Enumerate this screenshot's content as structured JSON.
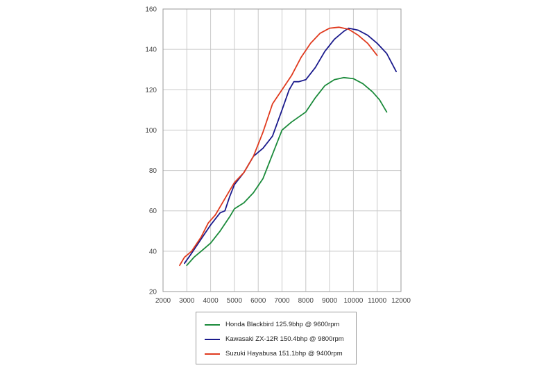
{
  "chart_data": {
    "type": "line",
    "title": "",
    "xlabel": "",
    "ylabel": "",
    "xlim": [
      2000,
      12000
    ],
    "ylim": [
      20,
      160
    ],
    "xticks": [
      2000,
      3000,
      4000,
      5000,
      6000,
      7000,
      8000,
      9000,
      10000,
      11000,
      12000
    ],
    "yticks": [
      20,
      40,
      60,
      80,
      100,
      120,
      140,
      160
    ],
    "grid": true,
    "legend_position": "bottom",
    "series": [
      {
        "name": "Honda Blackbird 125.9bhp @ 9600rpm",
        "color": "#1a8a3a",
        "points": [
          [
            3000,
            33
          ],
          [
            3300,
            37
          ],
          [
            3600,
            40
          ],
          [
            4000,
            44
          ],
          [
            4400,
            50
          ],
          [
            4800,
            57
          ],
          [
            5000,
            61
          ],
          [
            5400,
            64
          ],
          [
            5800,
            69
          ],
          [
            6200,
            76
          ],
          [
            6600,
            88
          ],
          [
            7000,
            100
          ],
          [
            7400,
            104
          ],
          [
            8000,
            109
          ],
          [
            8400,
            116
          ],
          [
            8800,
            122
          ],
          [
            9200,
            125
          ],
          [
            9600,
            126
          ],
          [
            10000,
            125.5
          ],
          [
            10400,
            123
          ],
          [
            10800,
            119
          ],
          [
            11100,
            115
          ],
          [
            11400,
            109
          ]
        ]
      },
      {
        "name": "Kawasaki ZX-12R 150.4bhp @ 9800rpm",
        "color": "#1a1a8c",
        "points": [
          [
            2900,
            34
          ],
          [
            3200,
            39
          ],
          [
            3600,
            46
          ],
          [
            4000,
            53
          ],
          [
            4400,
            59
          ],
          [
            4600,
            60
          ],
          [
            4800,
            67
          ],
          [
            5000,
            73
          ],
          [
            5400,
            79
          ],
          [
            5800,
            87
          ],
          [
            6200,
            91
          ],
          [
            6600,
            97
          ],
          [
            7000,
            110
          ],
          [
            7300,
            120
          ],
          [
            7500,
            124
          ],
          [
            7700,
            124
          ],
          [
            8000,
            125
          ],
          [
            8400,
            131
          ],
          [
            8800,
            139
          ],
          [
            9200,
            145
          ],
          [
            9600,
            149
          ],
          [
            9800,
            150.5
          ],
          [
            10200,
            149.5
          ],
          [
            10600,
            147
          ],
          [
            11000,
            143
          ],
          [
            11400,
            138
          ],
          [
            11800,
            129
          ]
        ]
      },
      {
        "name": "Suzuki Hayabusa 151.1bhp @ 9400rpm",
        "color": "#e03a1e",
        "points": [
          [
            2700,
            33
          ],
          [
            2900,
            37
          ],
          [
            3200,
            40
          ],
          [
            3600,
            47
          ],
          [
            3900,
            54
          ],
          [
            4200,
            58
          ],
          [
            4400,
            62
          ],
          [
            4800,
            70
          ],
          [
            5000,
            74
          ],
          [
            5400,
            79
          ],
          [
            5800,
            87
          ],
          [
            6200,
            99
          ],
          [
            6600,
            113
          ],
          [
            7000,
            120
          ],
          [
            7400,
            127
          ],
          [
            7800,
            136
          ],
          [
            8200,
            143
          ],
          [
            8600,
            148
          ],
          [
            9000,
            150.5
          ],
          [
            9400,
            151
          ],
          [
            9800,
            150
          ],
          [
            10200,
            147
          ],
          [
            10600,
            143
          ],
          [
            10800,
            140
          ],
          [
            11000,
            137
          ]
        ]
      }
    ]
  }
}
